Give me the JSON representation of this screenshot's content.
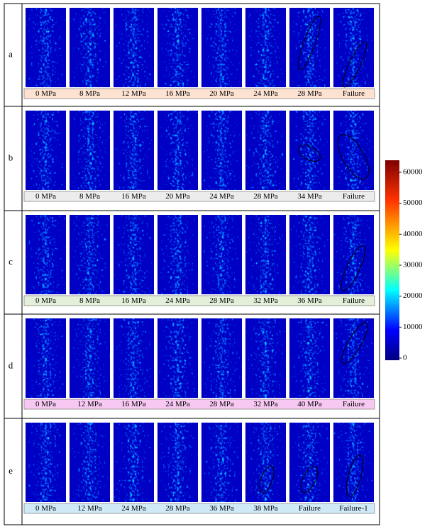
{
  "rows": [
    {
      "label": "a",
      "stages": [
        "0 MPa",
        "8 MPa",
        "12 MPa",
        "16 MPa",
        "20 MPa",
        "24 MPa",
        "28 MPa",
        "Failure"
      ]
    },
    {
      "label": "b",
      "stages": [
        "0 MPa",
        "8 MPa",
        "16 MPa",
        "20 MPa",
        "24 MPa",
        "28 MPa",
        "34 MPa",
        "Failure"
      ]
    },
    {
      "label": "c",
      "stages": [
        "0 MPa",
        "8 MPa",
        "16 MPa",
        "24 MPa",
        "28 MPa",
        "32 MPa",
        "36 MPa",
        "Failure"
      ]
    },
    {
      "label": "d",
      "stages": [
        "0 MPa",
        "12 MPa",
        "16 MPa",
        "24 MPa",
        "28 MPa",
        "32 MPa",
        "40 MPa",
        "Failure"
      ]
    },
    {
      "label": "e",
      "stages": [
        "0 MPa",
        "12 MPa",
        "24 MPa",
        "28 MPa",
        "36 MPa",
        "38 MPa",
        "Failure",
        "Failure-1"
      ]
    }
  ],
  "colorbar": {
    "ticks": [
      0,
      10000,
      20000,
      30000,
      40000,
      50000,
      60000
    ]
  }
}
